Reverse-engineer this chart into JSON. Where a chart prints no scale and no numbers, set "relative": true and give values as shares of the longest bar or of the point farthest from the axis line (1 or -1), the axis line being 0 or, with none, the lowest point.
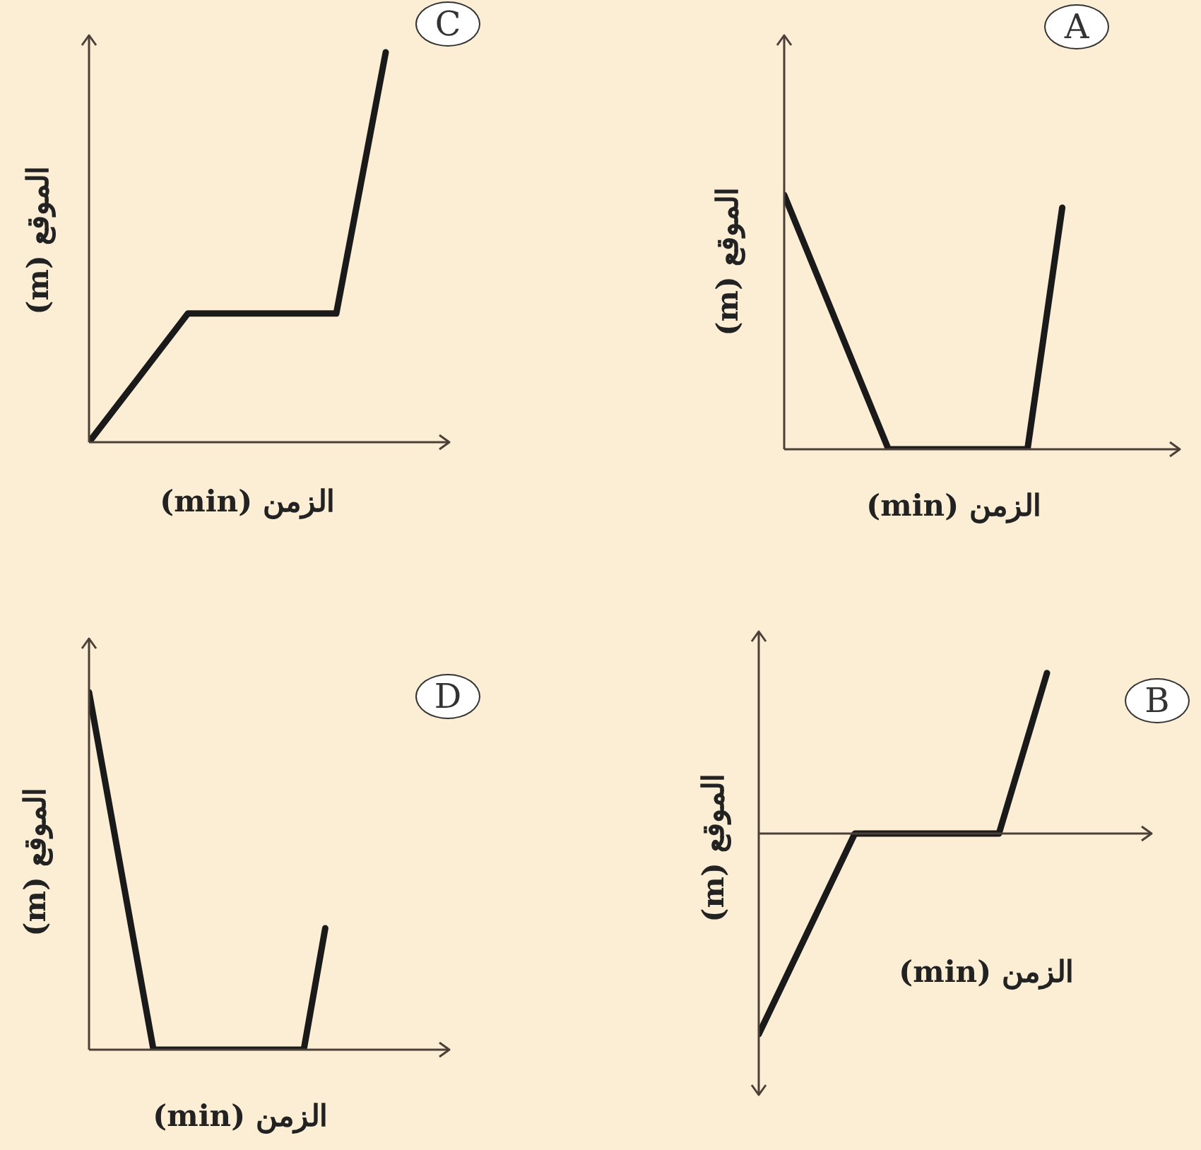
{
  "chart_data": [
    {
      "type": "line",
      "title": "A",
      "xlabel": "الزمن (min)",
      "ylabel": "الموقع (m)",
      "relative": true,
      "categories": [
        null,
        null,
        null,
        null,
        null,
        null,
        null,
        null,
        null,
        null,
        null,
        null
      ],
      "color": "#1a1a1a",
      "values": [
        1,
        0.667,
        0.333,
        0,
        0,
        0,
        0,
        0,
        0.95,
        null,
        null,
        null
      ]
    },
    {
      "type": "line",
      "title": "C",
      "xlabel": "الزمن (min)",
      "ylabel": "الموقع (m)",
      "relative": true,
      "categories": [
        null,
        null,
        null,
        null,
        null,
        null,
        null,
        null
      ],
      "color": "#1a1a1a",
      "values": [
        0,
        0.165,
        0.33,
        0.33,
        0.33,
        0.33,
        1,
        null
      ]
    },
    {
      "type": "line",
      "title": "B",
      "xlabel": "الزمن (min)",
      "ylabel": "الموقع (m)",
      "relative": true,
      "categories": [
        null,
        null,
        null,
        null,
        null,
        null,
        null,
        null,
        null
      ],
      "color": "#1a1a1a",
      "values": [
        -1,
        -0.5,
        0,
        0,
        0,
        0,
        0.8,
        null,
        null
      ]
    },
    {
      "type": "line",
      "title": "D",
      "xlabel": "الزمن (min)",
      "ylabel": "الموقع (m)",
      "relative": true,
      "categories": [
        null,
        null,
        null,
        null,
        null,
        null,
        null,
        null,
        null,
        null,
        null,
        null,
        null,
        null,
        null,
        null,
        null
      ],
      "color": "#1a1a1a",
      "values": [
        1,
        0.667,
        0.333,
        0,
        0,
        0,
        0,
        0,
        0,
        0,
        0,
        0.34,
        null,
        null,
        null,
        null,
        null
      ]
    }
  ]
}
